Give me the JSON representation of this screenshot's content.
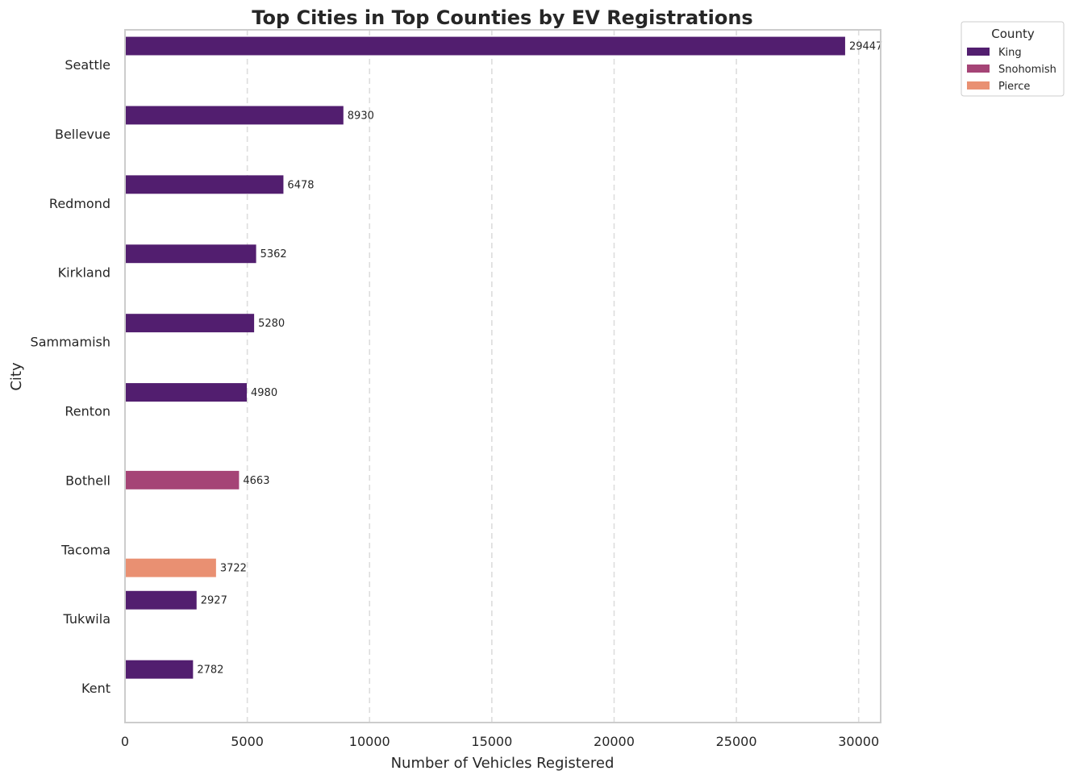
{
  "chart_data": {
    "type": "bar",
    "orientation": "horizontal",
    "title": "Top Cities in Top Counties by EV Registrations",
    "xlabel": "Number of Vehicles Registered",
    "ylabel": "City",
    "xlim": [
      0,
      30900
    ],
    "xticks": [
      0,
      5000,
      10000,
      15000,
      20000,
      25000,
      30000
    ],
    "grid": "x-dashed",
    "categories": [
      "Seattle",
      "Bellevue",
      "Redmond",
      "Kirkland",
      "Sammamish",
      "Renton",
      "Bothell",
      "Tacoma",
      "Tukwila",
      "Kent"
    ],
    "series": [
      {
        "name": "King",
        "color": "#521e6f",
        "values": [
          29447,
          8930,
          6478,
          5362,
          5280,
          4980,
          null,
          null,
          2927,
          2782
        ]
      },
      {
        "name": "Snohomish",
        "color": "#a54476",
        "values": [
          null,
          null,
          null,
          null,
          null,
          null,
          4663,
          null,
          null,
          null
        ]
      },
      {
        "name": "Pierce",
        "color": "#e99072",
        "values": [
          null,
          null,
          null,
          null,
          null,
          null,
          null,
          3722,
          null,
          null
        ]
      }
    ],
    "legend": {
      "title": "County",
      "placement": "outside-top-right"
    }
  }
}
